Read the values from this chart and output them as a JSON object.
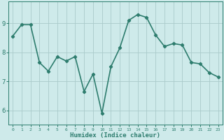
{
  "x": [
    0,
    1,
    2,
    3,
    4,
    5,
    6,
    7,
    8,
    9,
    10,
    11,
    12,
    13,
    14,
    15,
    16,
    17,
    18,
    19,
    20,
    21,
    22,
    23
  ],
  "y": [
    8.55,
    8.95,
    8.95,
    7.65,
    7.35,
    7.85,
    7.7,
    7.85,
    6.65,
    7.25,
    5.9,
    7.5,
    8.15,
    9.1,
    9.3,
    9.2,
    8.6,
    8.2,
    8.3,
    8.25,
    7.65,
    7.6,
    7.3,
    7.15
  ],
  "line_color": "#2e7d6e",
  "marker": "D",
  "marker_size": 2.2,
  "bg_color": "#ceeaea",
  "grid_color": "#aacaca",
  "tick_color": "#2e7d6e",
  "label_color": "#2e7d6e",
  "xlabel": "Humidex (Indice chaleur)",
  "ylim": [
    5.5,
    9.75
  ],
  "yticks": [
    6,
    7,
    8,
    9
  ],
  "xticks": [
    0,
    1,
    2,
    3,
    4,
    5,
    6,
    7,
    8,
    9,
    10,
    11,
    12,
    13,
    14,
    15,
    16,
    17,
    18,
    19,
    20,
    21,
    22,
    23
  ],
  "line_width": 1.2
}
